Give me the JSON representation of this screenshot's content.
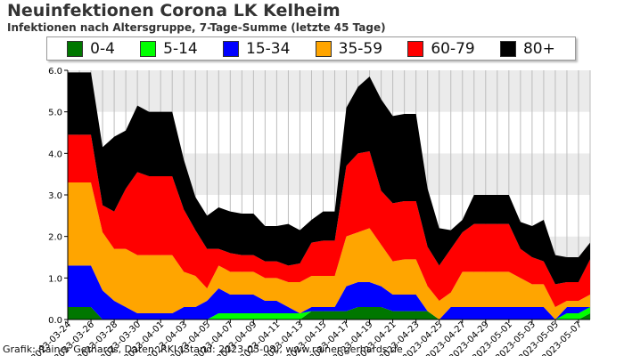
{
  "title": "Neuinfektionen Corona LK Kelheim",
  "subtitle": "Infektionen nach Altersgruppe, 7-Tage-Summe (letzte 45 Tage)",
  "footer": "Grafik: Rainer Gerhards, Daten: RKI (Stand: 2023-05-08), www.rainer-gerhards.de",
  "legend": [
    {
      "label": "0-4",
      "color": "#007700"
    },
    {
      "label": "5-14",
      "color": "#00ff00"
    },
    {
      "label": "15-34",
      "color": "#0000ff"
    },
    {
      "label": "35-59",
      "color": "#ffa500"
    },
    {
      "label": "60-79",
      "color": "#ff0000"
    },
    {
      "label": "80+",
      "color": "#000000"
    }
  ],
  "chart_data": {
    "type": "area",
    "stacked": true,
    "title": "Neuinfektionen Corona LK Kelheim",
    "subtitle": "Infektionen nach Altersgruppe, 7-Tage-Summe (letzte 45 Tage)",
    "ylim": [
      0,
      6
    ],
    "yticks": [
      "0.0",
      "1.0",
      "2.0",
      "3.0",
      "4.0",
      "5.0",
      "6.0"
    ],
    "x_tick_labels": [
      "2023-03-24",
      "2023-03-26",
      "2023-03-28",
      "2023-03-30",
      "2023-04-01",
      "2023-04-03",
      "2023-04-05",
      "2023-04-07",
      "2023-04-09",
      "2023-04-11",
      "2023-04-13",
      "2023-04-15",
      "2023-04-17",
      "2023-04-19",
      "2023-04-21",
      "2023-04-23",
      "2023-04-25",
      "2023-04-27",
      "2023-04-29",
      "2023-05-01",
      "2023-05-03",
      "2023-05-05",
      "2023-05-07"
    ],
    "x": [
      "2023-03-24",
      "2023-03-25",
      "2023-03-26",
      "2023-03-27",
      "2023-03-28",
      "2023-03-29",
      "2023-03-30",
      "2023-03-31",
      "2023-04-01",
      "2023-04-02",
      "2023-04-03",
      "2023-04-04",
      "2023-04-05",
      "2023-04-06",
      "2023-04-07",
      "2023-04-08",
      "2023-04-09",
      "2023-04-10",
      "2023-04-11",
      "2023-04-12",
      "2023-04-13",
      "2023-04-14",
      "2023-04-15",
      "2023-04-16",
      "2023-04-17",
      "2023-04-18",
      "2023-04-19",
      "2023-04-20",
      "2023-04-21",
      "2023-04-22",
      "2023-04-23",
      "2023-04-24",
      "2023-04-25",
      "2023-04-26",
      "2023-04-27",
      "2023-04-28",
      "2023-04-29",
      "2023-04-30",
      "2023-05-01",
      "2023-05-02",
      "2023-05-03",
      "2023-05-04",
      "2023-05-05",
      "2023-05-06",
      "2023-05-07",
      "2023-05-08"
    ],
    "grid": "horizontal bands and vertical lines",
    "legend_position": "top",
    "series": [
      {
        "name": "0-4",
        "color": "#007700",
        "values": [
          0.3,
          0.3,
          0.3,
          0.0,
          0.0,
          0.0,
          0.0,
          0.0,
          0.0,
          0.0,
          0.0,
          0.0,
          0.0,
          0.0,
          0.0,
          0.0,
          0.0,
          0.0,
          0.0,
          0.0,
          0.0,
          0.2,
          0.2,
          0.2,
          0.2,
          0.3,
          0.3,
          0.3,
          0.2,
          0.2,
          0.2,
          0.2,
          0.0,
          0.0,
          0.0,
          0.0,
          0.0,
          0.0,
          0.0,
          0.0,
          0.0,
          0.0,
          0.0,
          0.0,
          0.0,
          0.15
        ]
      },
      {
        "name": "5-14",
        "color": "#00ff00",
        "values": [
          0.0,
          0.0,
          0.0,
          0.0,
          0.0,
          0.0,
          0.0,
          0.0,
          0.0,
          0.0,
          0.0,
          0.0,
          0.0,
          0.15,
          0.15,
          0.15,
          0.15,
          0.15,
          0.15,
          0.15,
          0.15,
          0.0,
          0.0,
          0.0,
          0.0,
          0.0,
          0.0,
          0.0,
          0.0,
          0.0,
          0.0,
          0.0,
          0.0,
          0.0,
          0.0,
          0.0,
          0.0,
          0.0,
          0.0,
          0.0,
          0.0,
          0.0,
          0.0,
          0.15,
          0.15,
          0.15
        ]
      },
      {
        "name": "15-34",
        "color": "#0000ff",
        "values": [
          1.0,
          1.0,
          1.0,
          0.7,
          0.45,
          0.3,
          0.15,
          0.15,
          0.15,
          0.15,
          0.3,
          0.3,
          0.45,
          0.6,
          0.45,
          0.45,
          0.45,
          0.3,
          0.3,
          0.15,
          0.0,
          0.1,
          0.1,
          0.1,
          0.6,
          0.6,
          0.6,
          0.5,
          0.4,
          0.4,
          0.4,
          0.0,
          0.0,
          0.3,
          0.3,
          0.3,
          0.3,
          0.3,
          0.3,
          0.3,
          0.3,
          0.3,
          0.0,
          0.15,
          0.15,
          0.0
        ]
      },
      {
        "name": "35-59",
        "color": "#ffa500",
        "values": [
          2.0,
          2.0,
          2.0,
          1.4,
          1.25,
          1.4,
          1.4,
          1.4,
          1.4,
          1.4,
          0.85,
          0.75,
          0.3,
          0.55,
          0.55,
          0.55,
          0.55,
          0.55,
          0.55,
          0.6,
          0.75,
          0.75,
          0.75,
          0.75,
          1.2,
          1.2,
          1.3,
          1.0,
          0.8,
          0.85,
          0.85,
          0.6,
          0.45,
          0.35,
          0.85,
          0.85,
          0.85,
          0.85,
          0.85,
          0.7,
          0.55,
          0.55,
          0.3,
          0.15,
          0.15,
          0.3
        ]
      },
      {
        "name": "60-79",
        "color": "#ff0000",
        "values": [
          1.15,
          1.15,
          1.15,
          0.65,
          0.9,
          1.45,
          2.0,
          1.9,
          1.9,
          1.9,
          1.5,
          1.1,
          0.95,
          0.4,
          0.45,
          0.4,
          0.4,
          0.4,
          0.4,
          0.4,
          0.45,
          0.8,
          0.85,
          0.85,
          1.7,
          1.9,
          1.85,
          1.3,
          1.4,
          1.4,
          1.4,
          0.95,
          0.85,
          1.05,
          0.95,
          1.15,
          1.15,
          1.15,
          1.15,
          0.7,
          0.65,
          0.55,
          0.55,
          0.45,
          0.45,
          0.85
        ]
      },
      {
        "name": "80+",
        "color": "#000000",
        "values": [
          1.5,
          1.5,
          1.5,
          1.4,
          1.8,
          1.4,
          1.6,
          1.55,
          1.55,
          1.55,
          1.2,
          0.8,
          0.8,
          1.0,
          1.0,
          1.0,
          1.0,
          0.85,
          0.85,
          1.0,
          0.8,
          0.55,
          0.7,
          0.7,
          1.4,
          1.6,
          1.8,
          2.2,
          2.1,
          2.1,
          2.1,
          1.4,
          0.9,
          0.45,
          0.3,
          0.7,
          0.7,
          0.7,
          0.7,
          0.65,
          0.75,
          1.0,
          0.7,
          0.6,
          0.6,
          0.4
        ]
      }
    ]
  }
}
